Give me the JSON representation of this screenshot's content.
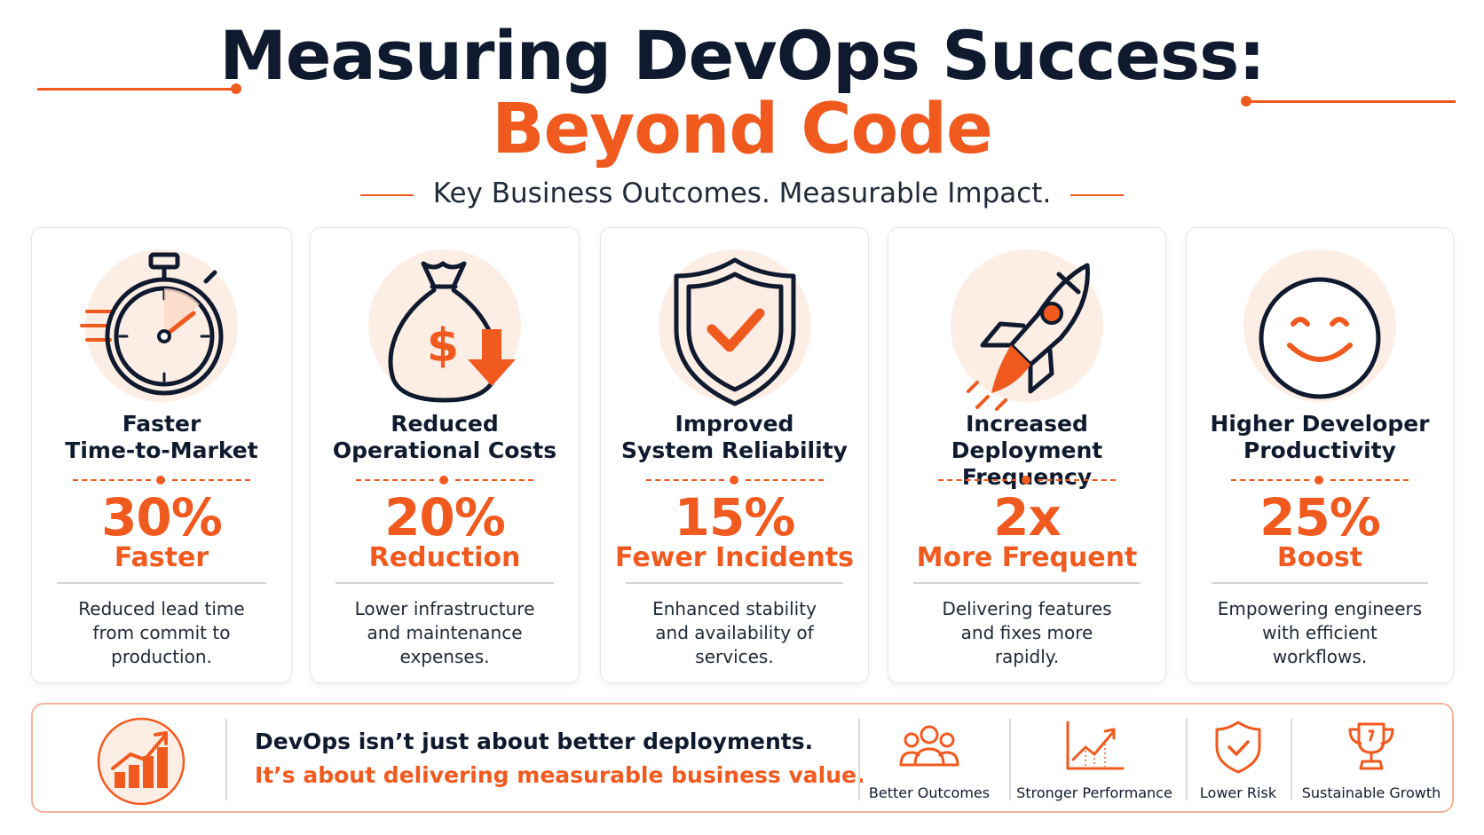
{
  "header": {
    "title_line1": "Measuring DevOps Success:",
    "title_line2": "Beyond Code",
    "subtitle": "Key Business Outcomes. Measurable Impact."
  },
  "colors": {
    "accent": "#f15a1f",
    "dark": "#0f1a2e",
    "icon_bg": "#fdeee5"
  },
  "cards": [
    {
      "icon": "stopwatch-icon",
      "title_line1": "Faster",
      "title_line2": "Time-to-Market",
      "value": "30%",
      "unit": "Faster",
      "desc_line1": "Reduced lead time",
      "desc_line2": "from commit to",
      "desc_line3": "production."
    },
    {
      "icon": "money-bag-down-icon",
      "title_line1": "Reduced",
      "title_line2": "Operational Costs",
      "value": "20%",
      "unit": "Reduction",
      "desc_line1": "Lower infrastructure",
      "desc_line2": "and maintenance",
      "desc_line3": "expenses."
    },
    {
      "icon": "shield-check-icon",
      "title_line1": "Improved",
      "title_line2": "System Reliability",
      "value": "15%",
      "unit": "Fewer Incidents",
      "desc_line1": "Enhanced stability",
      "desc_line2": "and availability of",
      "desc_line3": "services."
    },
    {
      "icon": "rocket-icon",
      "title_line1": "Increased",
      "title_line2": "Deployment Frequency",
      "value": "2x",
      "unit": "More Frequent",
      "desc_line1": "Delivering features",
      "desc_line2": "and fixes more",
      "desc_line3": "rapidly."
    },
    {
      "icon": "smiley-face-icon",
      "title_line1": "Higher Developer",
      "title_line2": "Productivity",
      "value": "25%",
      "unit": "Boost",
      "desc_line1": "Empowering engineers",
      "desc_line2": "with efficient",
      "desc_line3": "workflows."
    }
  ],
  "banner": {
    "icon": "growth-chart-icon",
    "line1": "DevOps isn’t just about better deployments.",
    "line2": "It’s about delivering measurable business value.",
    "outcomes": [
      {
        "icon": "team-icon",
        "label": "Better Outcomes"
      },
      {
        "icon": "line-chart-icon",
        "label": "Stronger Performance"
      },
      {
        "icon": "shield-check-icon",
        "label": "Lower Risk"
      },
      {
        "icon": "trophy-icon",
        "label": "Sustainable Growth"
      }
    ]
  }
}
